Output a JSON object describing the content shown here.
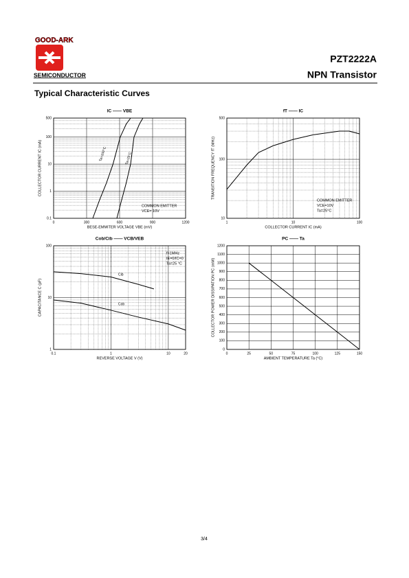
{
  "header": {
    "logo_top": "GOOD-ARK",
    "logo_bottom": "SEMICONDUCTOR",
    "part": "PZT2222A",
    "description": "NPN Transistor"
  },
  "section_title": "Typical Characteristic Curves",
  "footer": "3/4",
  "chart_data": [
    {
      "type": "line",
      "title": "IC —— VBE",
      "x_label": "BESE-EMMITER  VOLTAGE  VBE  (mV)",
      "y_label": "COLLECTOR CURRENT   IC   (mA)",
      "xlim": [
        0,
        1200
      ],
      "xticks": [
        0,
        300,
        600,
        900,
        1200
      ],
      "ylim": [
        0.1,
        500
      ],
      "yticks": [
        0.1,
        1,
        10,
        100,
        500
      ],
      "yscale": "log",
      "grid": true,
      "annotations": [
        "COMMON EMITTER",
        "VCE= 10V"
      ],
      "series": [
        {
          "name": "Ta=100°C",
          "color": "#000000",
          "x": [
            356,
            420,
            480,
            540,
            606,
            660,
            700
          ],
          "values": [
            0.1,
            0.5,
            2,
            10,
            100,
            300,
            500
          ]
        },
        {
          "name": "Ta=25°C",
          "color": "#000000",
          "x": [
            575,
            620,
            660,
            700,
            731,
            780,
            812
          ],
          "values": [
            0.1,
            0.5,
            2,
            10,
            100,
            300,
            500
          ]
        }
      ]
    },
    {
      "type": "line",
      "title": "fT —— IC",
      "x_label": "COLLECTOR CURRENT   IC   (mA)",
      "y_label": "TRANSITION FREQUENCY  fT   (MHz)",
      "xlim": [
        1,
        100
      ],
      "xticks": [
        1,
        10,
        100
      ],
      "xscale": "log",
      "ylim": [
        10,
        500
      ],
      "yticks": [
        10,
        100,
        500
      ],
      "yscale": "log",
      "grid": true,
      "annotations": [
        "COMMON EMITTER",
        "VCE=10V",
        "Ta=25°C"
      ],
      "series": [
        {
          "color": "#000000",
          "x": [
            1,
            2,
            3,
            5,
            10,
            20,
            50,
            70,
            100
          ],
          "values": [
            31,
            80,
            130,
            170,
            217,
            260,
            300,
            300,
            270
          ]
        }
      ]
    },
    {
      "type": "line",
      "title": "Cob/Cib —— VCB/VEB",
      "x_label": "REVERSE  VOLTAGE   V    (V)",
      "y_label": "CAPACITANCE   C    (pF)",
      "xlim": [
        0.1,
        20
      ],
      "xticks": [
        0.1,
        1,
        10,
        20
      ],
      "xscale": "log",
      "ylim": [
        1,
        100
      ],
      "yticks": [
        1,
        10,
        100
      ],
      "yscale": "log",
      "grid": true,
      "annotations": [
        "f=1MHz",
        "IE=0/IC=0",
        "Ta=25 °C"
      ],
      "series": [
        {
          "name": "Cib",
          "color": "#000000",
          "x": [
            0.1,
            0.3,
            1,
            3,
            5.6
          ],
          "values": [
            31.5,
            29,
            25,
            18,
            14.7
          ]
        },
        {
          "name": "Cob",
          "color": "#000000",
          "x": [
            0.1,
            0.3,
            1,
            3,
            10,
            20
          ],
          "values": [
            9,
            7.8,
            5.7,
            4.2,
            3.1,
            2.35
          ]
        }
      ]
    },
    {
      "type": "line",
      "title": "PC —— Ta",
      "x_label": "AMBIENT TEMPERATURE   Ta   (°C)",
      "y_label": "COLLECTOR POWER DISSIPATION   PC   (mW)",
      "xlim": [
        0,
        150
      ],
      "xticks": [
        0,
        25,
        50,
        75,
        100,
        125,
        150
      ],
      "ylim": [
        0,
        1200
      ],
      "yticks": [
        0,
        100,
        200,
        300,
        400,
        500,
        600,
        700,
        800,
        900,
        1000,
        1100,
        1200
      ],
      "grid": true,
      "series": [
        {
          "color": "#000000",
          "x": [
            25,
            150
          ],
          "values": [
            1000,
            0
          ]
        }
      ]
    }
  ]
}
